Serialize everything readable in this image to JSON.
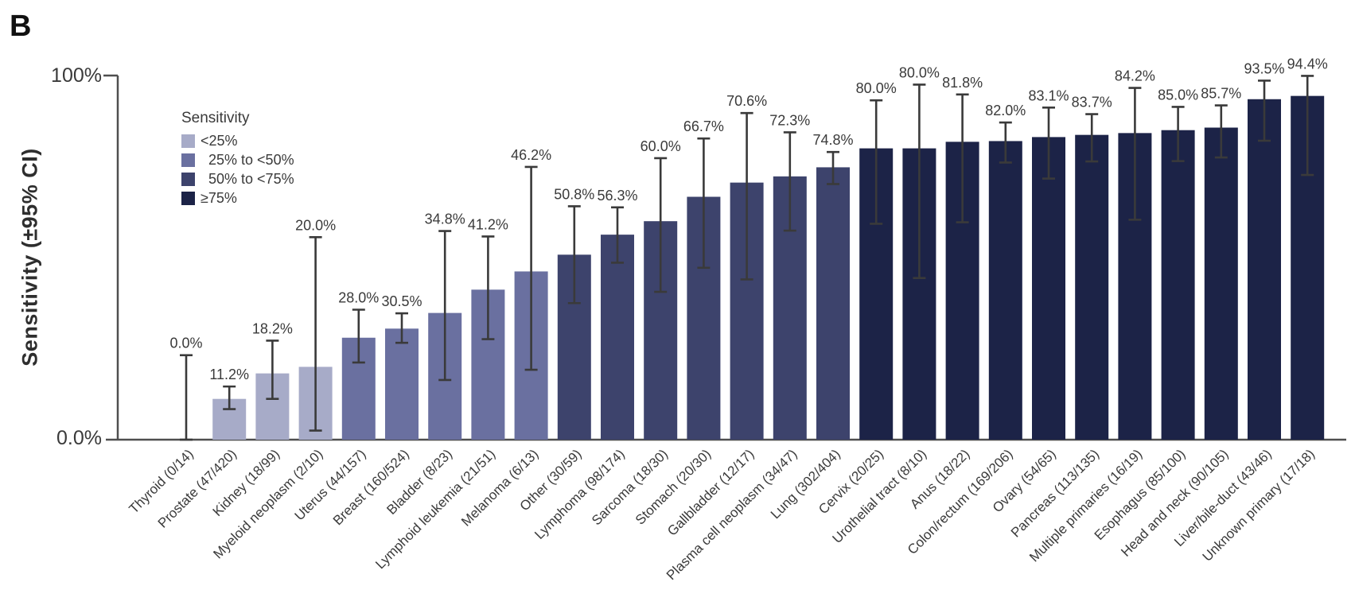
{
  "panel_label": "B",
  "legend": {
    "title": "Sensitivity",
    "items": [
      {
        "label": "<25%",
        "color": "#a7abc8"
      },
      {
        "label": "  25% to <50%",
        "color": "#6a70a0"
      },
      {
        "label": "  50% to <75%",
        "color": "#3d436c"
      },
      {
        "label": "≥75%",
        "color": "#1c2347"
      }
    ]
  },
  "chart_data": {
    "type": "bar",
    "title": "",
    "xlabel": "",
    "ylabel": "Sensitivity (±95% CI)",
    "ylim": [
      0,
      100
    ],
    "ytick_labels": {
      "top": "100%",
      "bottom": "0.0%"
    },
    "grid": false,
    "legend_position": "upper-left-inside",
    "error_bars": "95% confidence interval",
    "color_rule": {
      "thresholds": [
        25,
        50,
        75
      ],
      "note": "bar color bucket by sensitivity value"
    },
    "categories": [
      "Thyroid (0/14)",
      "Prostate (47/420)",
      "Kidney (18/99)",
      "Myeloid neoplasm (2/10)",
      "Uterus (44/157)",
      "Breast (160/524)",
      "Bladder (8/23)",
      "Lymphoid leukemia (21/51)",
      "Melanoma (6/13)",
      "Other (30/59)",
      "Lymphoma (98/174)",
      "Sarcoma (18/30)",
      "Stomach (20/30)",
      "Gallbladder (12/17)",
      "Plasma cell neoplasm (34/47)",
      "Lung (302/404)",
      "Cervix (20/25)",
      "Urothelial tract (8/10)",
      "Anus (18/22)",
      "Colon/rectum (169/206)",
      "Ovary (54/65)",
      "Pancreas (113/135)",
      "Multiple primaries (16/19)",
      "Esophagus (85/100)",
      "Head and neck (90/105)",
      "Liver/bile-duct (43/46)",
      "Unknown primary (17/18)"
    ],
    "values": [
      0.0,
      11.2,
      18.2,
      20.0,
      28.0,
      30.5,
      34.8,
      41.2,
      46.2,
      50.8,
      56.3,
      60.0,
      66.7,
      70.6,
      72.3,
      74.8,
      80.0,
      80.0,
      81.8,
      82.0,
      83.1,
      83.7,
      84.2,
      85.0,
      85.7,
      93.5,
      94.4
    ],
    "value_labels": [
      "0.0%",
      "11.2%",
      "18.2%",
      "20.0%",
      "28.0%",
      "30.5%",
      "34.8%",
      "41.2%",
      "46.2%",
      "50.8%",
      "56.3%",
      "60.0%",
      "66.7%",
      "70.6%",
      "72.3%",
      "74.8%",
      "80.0%",
      "80.0%",
      "81.8%",
      "82.0%",
      "83.1%",
      "83.7%",
      "84.2%",
      "85.0%",
      "85.7%",
      "93.5%",
      "94.4%"
    ],
    "ci_low": [
      0.0,
      8.4,
      11.2,
      2.5,
      21.2,
      26.6,
      16.4,
      27.6,
      19.2,
      37.5,
      48.6,
      40.6,
      47.2,
      44.0,
      57.4,
      70.2,
      59.3,
      44.4,
      59.7,
      76.1,
      71.7,
      76.4,
      60.4,
      76.5,
      77.5,
      82.1,
      72.7
    ],
    "ci_high": [
      23.2,
      14.6,
      27.2,
      55.6,
      35.7,
      34.7,
      57.3,
      55.8,
      74.9,
      64.1,
      63.8,
      77.3,
      82.7,
      89.7,
      84.4,
      79.0,
      93.2,
      97.5,
      94.8,
      87.1,
      91.2,
      89.4,
      96.6,
      91.4,
      91.8,
      98.6,
      99.9
    ]
  }
}
